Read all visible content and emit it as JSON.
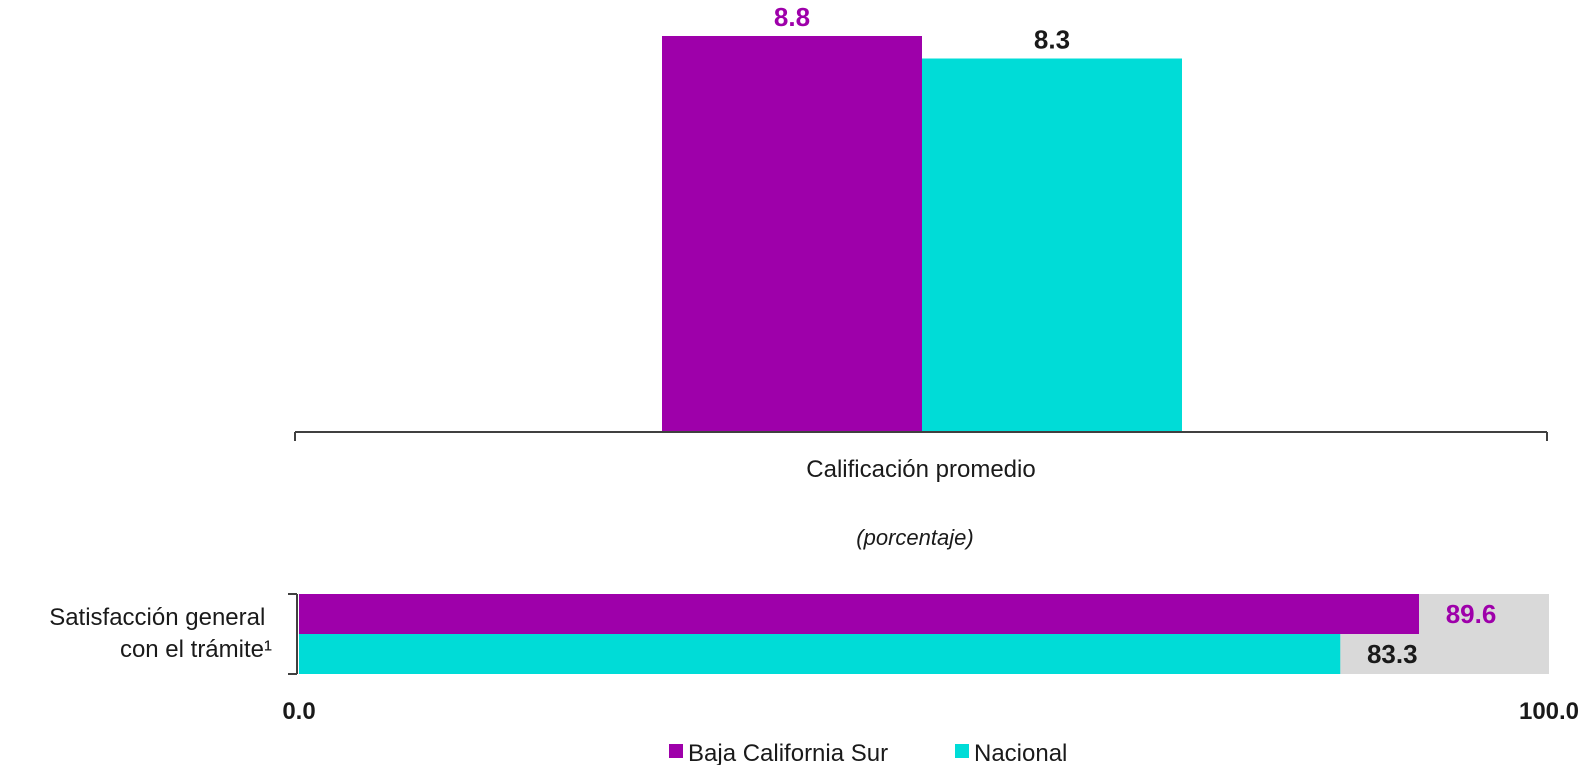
{
  "colors": {
    "primary": "#9e00aa",
    "secondary": "#00dcd7",
    "track": "#d9d9d9",
    "axis": "#404040",
    "text_dark": "#1a1a1a"
  },
  "chart_data": [
    {
      "type": "bar",
      "categories": [
        "Calificación promedio"
      ],
      "series": [
        {
          "name": "Baja California Sur",
          "values": [
            8.8
          ],
          "labels": [
            "8.8"
          ]
        },
        {
          "name": "Nacional",
          "values": [
            8.3
          ],
          "labels": [
            "8.3"
          ]
        }
      ],
      "ylim": [
        0,
        9.6
      ]
    },
    {
      "type": "bar",
      "orientation": "horizontal",
      "subtitle": "(porcentaje)",
      "categories": [
        "Satisfacción general con el trámite¹"
      ],
      "category_lines": [
        "Satisfacción general",
        "con el trámite¹"
      ],
      "series": [
        {
          "name": "Baja California Sur",
          "values": [
            89.6
          ],
          "labels": [
            "89.6"
          ]
        },
        {
          "name": "Nacional",
          "values": [
            83.3
          ],
          "labels": [
            "83.3"
          ]
        }
      ],
      "xlim": [
        0,
        100
      ],
      "tick_labels": [
        "0.0",
        "100.0"
      ],
      "background_track": true
    }
  ],
  "legend": {
    "position": "bottom",
    "items": [
      {
        "label": "Baja California Sur",
        "color": "#9e00aa"
      },
      {
        "label": "Nacional",
        "color": "#00dcd7"
      }
    ]
  }
}
